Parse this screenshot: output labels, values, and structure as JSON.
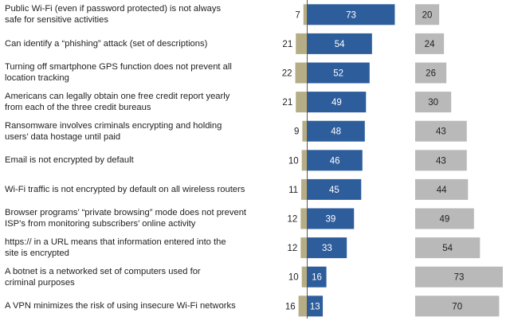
{
  "chart_data": {
    "type": "bar",
    "categories": [
      "Public Wi-Fi (even if password protected) is not always safe for sensitive activities",
      "Can identify a “phishing” attack (set of descriptions)",
      "Turning off smartphone GPS function does not prevent all location tracking",
      "Americans can legally obtain one free credit report yearly from each of the three credit bureaus",
      "Ransomware involves criminals encrypting and holding users’ data hostage until paid",
      "Email is not encrypted by default",
      "Wi-Fi traffic is not encrypted by default on all wireless routers",
      "Browser programs’ “private browsing” mode does not prevent ISP’s from monitoring subscribers’ online activity",
      "https:// in a URL means that information entered into the site is encrypted",
      "A botnet is a networked set of computers used for criminal purposes",
      "A VPN minimizes the risk of using insecure Wi-Fi networks"
    ],
    "series": [
      {
        "values": [
          7,
          21,
          22,
          21,
          9,
          10,
          11,
          12,
          12,
          10,
          16
        ]
      },
      {
        "values": [
          73,
          54,
          52,
          49,
          48,
          46,
          45,
          39,
          33,
          16,
          13
        ]
      },
      {
        "values": [
          20,
          24,
          26,
          30,
          43,
          43,
          44,
          49,
          54,
          73,
          70
        ]
      }
    ],
    "colors": [
      "#b5ad86",
      "#2e5d9c",
      "#b9b9b9"
    ],
    "title": "",
    "xlabel": "",
    "ylabel": ""
  }
}
